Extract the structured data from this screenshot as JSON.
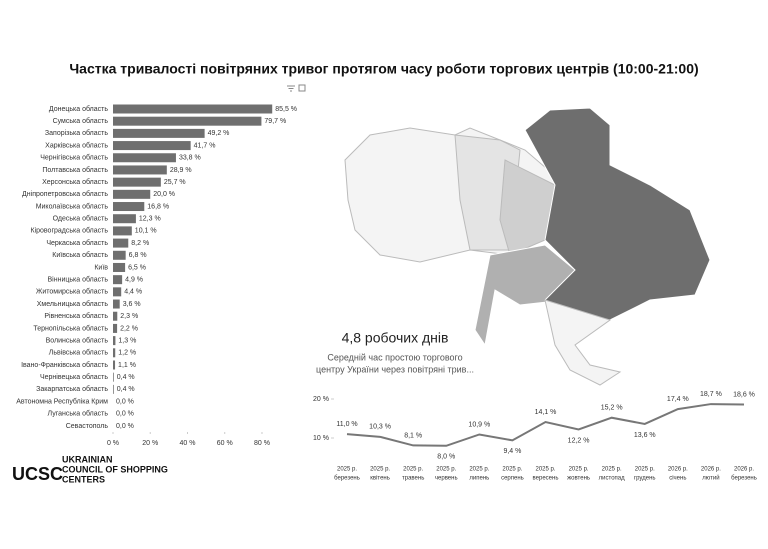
{
  "title": "Частка тривалості повітряних тривог протягом часу роботи торгових центрів (10:00-21:00)",
  "chart_data": [
    {
      "type": "hbar",
      "categories": [
        "Донецька область",
        "Сумська область",
        "Запорізька область",
        "Харківська область",
        "Чернігівська область",
        "Полтавська область",
        "Херсонська область",
        "Дніпропетровська область",
        "Миколаївська область",
        "Одеська область",
        "Кіровоградська область",
        "Черкаська область",
        "Київська область",
        "Київ",
        "Вінницька область",
        "Житомирська область",
        "Хмельницька область",
        "Рівненська область",
        "Тернопільська область",
        "Волинська область",
        "Львівська область",
        "Івано-Франківська область",
        "Чернівецька область",
        "Закарпатська область",
        "Автономна Республіка Крим",
        "Луганська область",
        "Севастополь"
      ],
      "values": [
        85.5,
        79.7,
        49.2,
        41.7,
        33.8,
        28.9,
        25.7,
        20.0,
        16.8,
        12.3,
        10.1,
        8.2,
        6.8,
        6.5,
        4.9,
        4.4,
        3.6,
        2.3,
        2.2,
        1.3,
        1.2,
        1.1,
        0.4,
        0.4,
        0.0,
        0.0,
        0.0
      ],
      "value_labels": [
        "85,5 %",
        "79,7 %",
        "49,2 %",
        "41,7 %",
        "33,8 %",
        "28,9 %",
        "25,7 %",
        "20,0 %",
        "16,8 %",
        "12,3 %",
        "10,1 %",
        "8,2 %",
        "6,8 %",
        "6,5 %",
        "4,9 %",
        "4,4 %",
        "3,6 %",
        "2,3 %",
        "2,2 %",
        "1,3 %",
        "1,2 %",
        "1,1 %",
        "0,4 %",
        "0,4 %",
        "0,0 %",
        "0,0 %",
        "0,0 %"
      ],
      "color": "#6f6f6f",
      "xlim": [
        0,
        90
      ],
      "xticks": [
        {
          "value": 0,
          "label": "0 %"
        },
        {
          "value": 20,
          "label": "20 %"
        },
        {
          "value": 40,
          "label": "40 %"
        },
        {
          "value": 60,
          "label": "60 %"
        },
        {
          "value": 80,
          "label": "80 %"
        }
      ]
    },
    {
      "type": "line",
      "categories": [
        [
          "2025 р.",
          "березень"
        ],
        [
          "2025 р.",
          "квітень"
        ],
        [
          "2025 р.",
          "травень"
        ],
        [
          "2025 р.",
          "червень"
        ],
        [
          "2025 р.",
          "липень"
        ],
        [
          "2025 р.",
          "серпень"
        ],
        [
          "2025 р.",
          "вересень"
        ],
        [
          "2025 р.",
          "жовтень"
        ],
        [
          "2025 р.",
          "листопад"
        ],
        [
          "2025 р.",
          "грудень"
        ],
        [
          "2026 р.",
          "січень"
        ],
        [
          "2026 р.",
          "лютий"
        ],
        [
          "2026 р.",
          "березень"
        ]
      ],
      "values": [
        11.0,
        10.3,
        8.1,
        8.0,
        10.9,
        9.4,
        14.1,
        12.2,
        15.2,
        13.6,
        17.4,
        18.7,
        18.6
      ],
      "value_labels": [
        "11,0 %",
        "10,3 %",
        "8,1 %",
        "8,0 %",
        "10,9 %",
        "9,4 %",
        "14,1 %",
        "12,2 %",
        "15,2 %",
        "13,6 %",
        "17,4 %",
        "18,7 %",
        "18,6 %"
      ],
      "color": "#777777",
      "ylim": [
        7,
        20
      ],
      "yticks": [
        {
          "value": 10,
          "label": "10 %"
        },
        {
          "value": 20,
          "label": "20 %"
        }
      ]
    }
  ],
  "kpi": {
    "value": "4,8 робочих днів",
    "caption": [
      "Середній час простою торгового",
      "центру України через повітряні трив..."
    ]
  },
  "logo": {
    "mark": "UCSC",
    "name": [
      "UKRAINIAN",
      "COUNCIL OF SHOPPING",
      "CENTERS"
    ]
  }
}
